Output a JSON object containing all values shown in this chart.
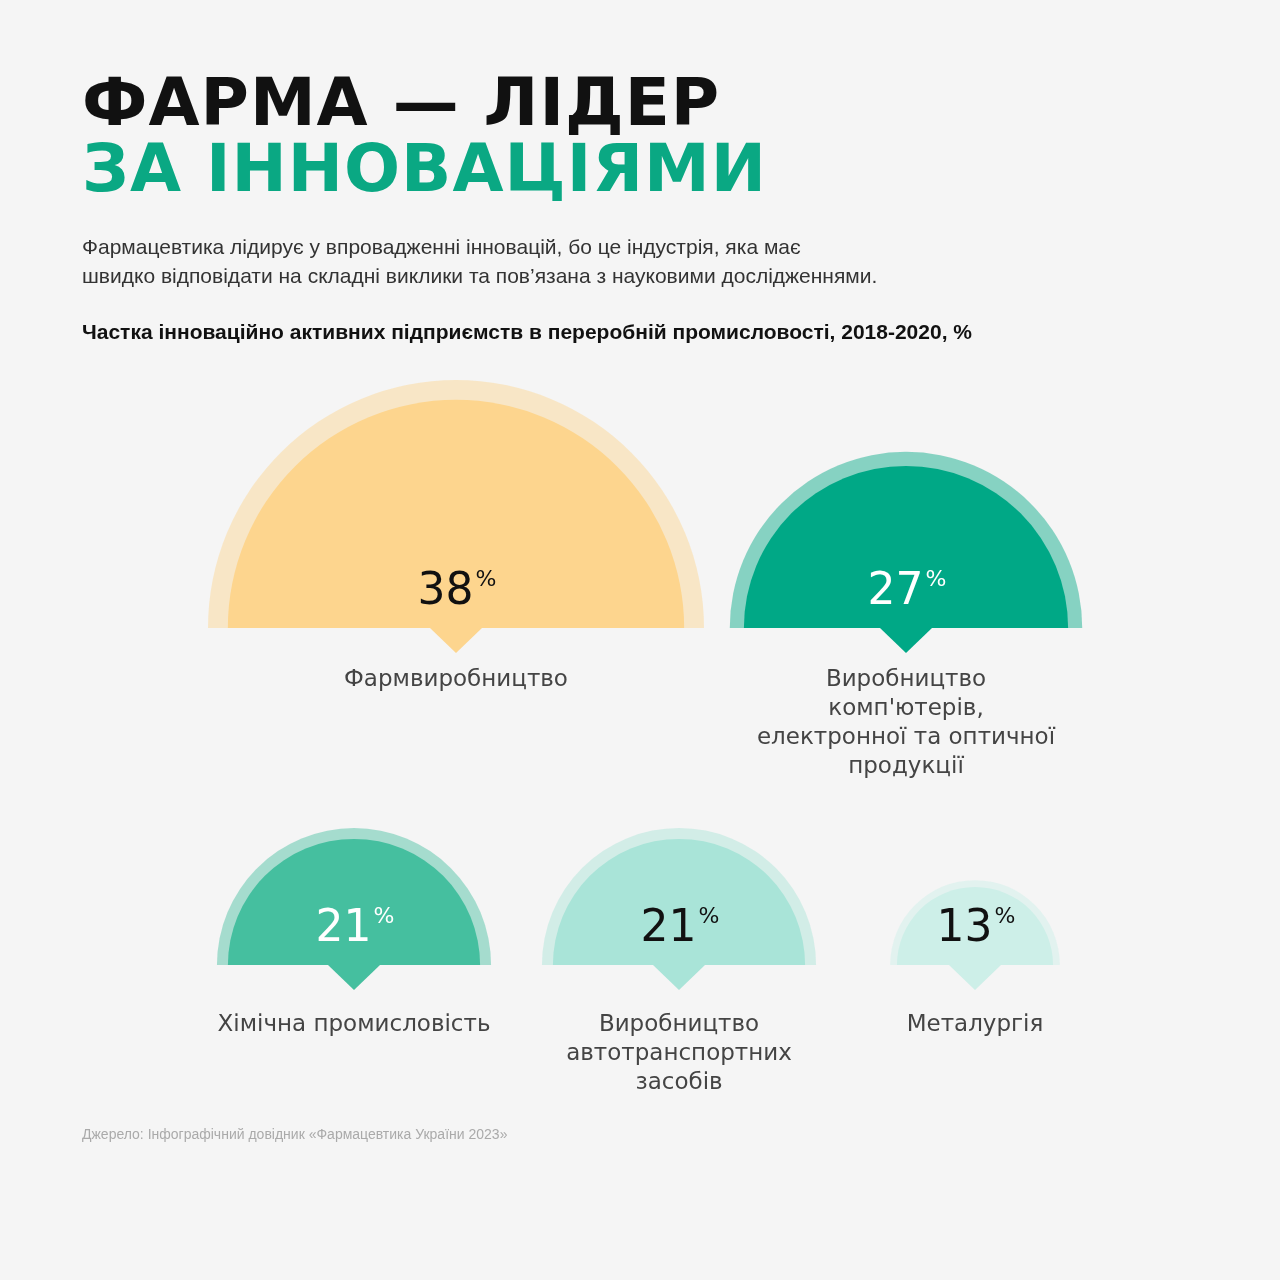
{
  "chart_data": {
    "type": "other",
    "title": "ФАРМА — ЛІДЕР\nЗА ІННОВАЦІЯМИ",
    "subtitle": "Фармацевтика лідирує у впровадженні інновацій, бо це індустрія, яка має\nшвидко відповідати на складні виклики та пов’язана з науковими дослідженнями.",
    "annotations": [
      "Частка інноваційно активних підприємств в переробній промисловості, 2018-2020, %",
      "Джерело: Інфографічний довідник «Фармацевтика України 2023»"
    ],
    "categories": [
      "Фармвиробництво",
      "Виробництво комп'ютерів, електронної та оптичної продукції",
      "Хімічна промисловість",
      "Виробництво автотранспортних засобів",
      "Металургія"
    ],
    "values": [
      38,
      27,
      21,
      21,
      13
    ],
    "value_labels": [
      "38$^{%}$",
      "27$^{%}$",
      "21$^{%}$",
      "21$^{%}$",
      "13$^{%}$"
    ],
    "colors": [
      "#fdd58e",
      "#00a886",
      "#45bf9f",
      "#a9e4d8",
      "#cdefe8"
    ]
  }
}
